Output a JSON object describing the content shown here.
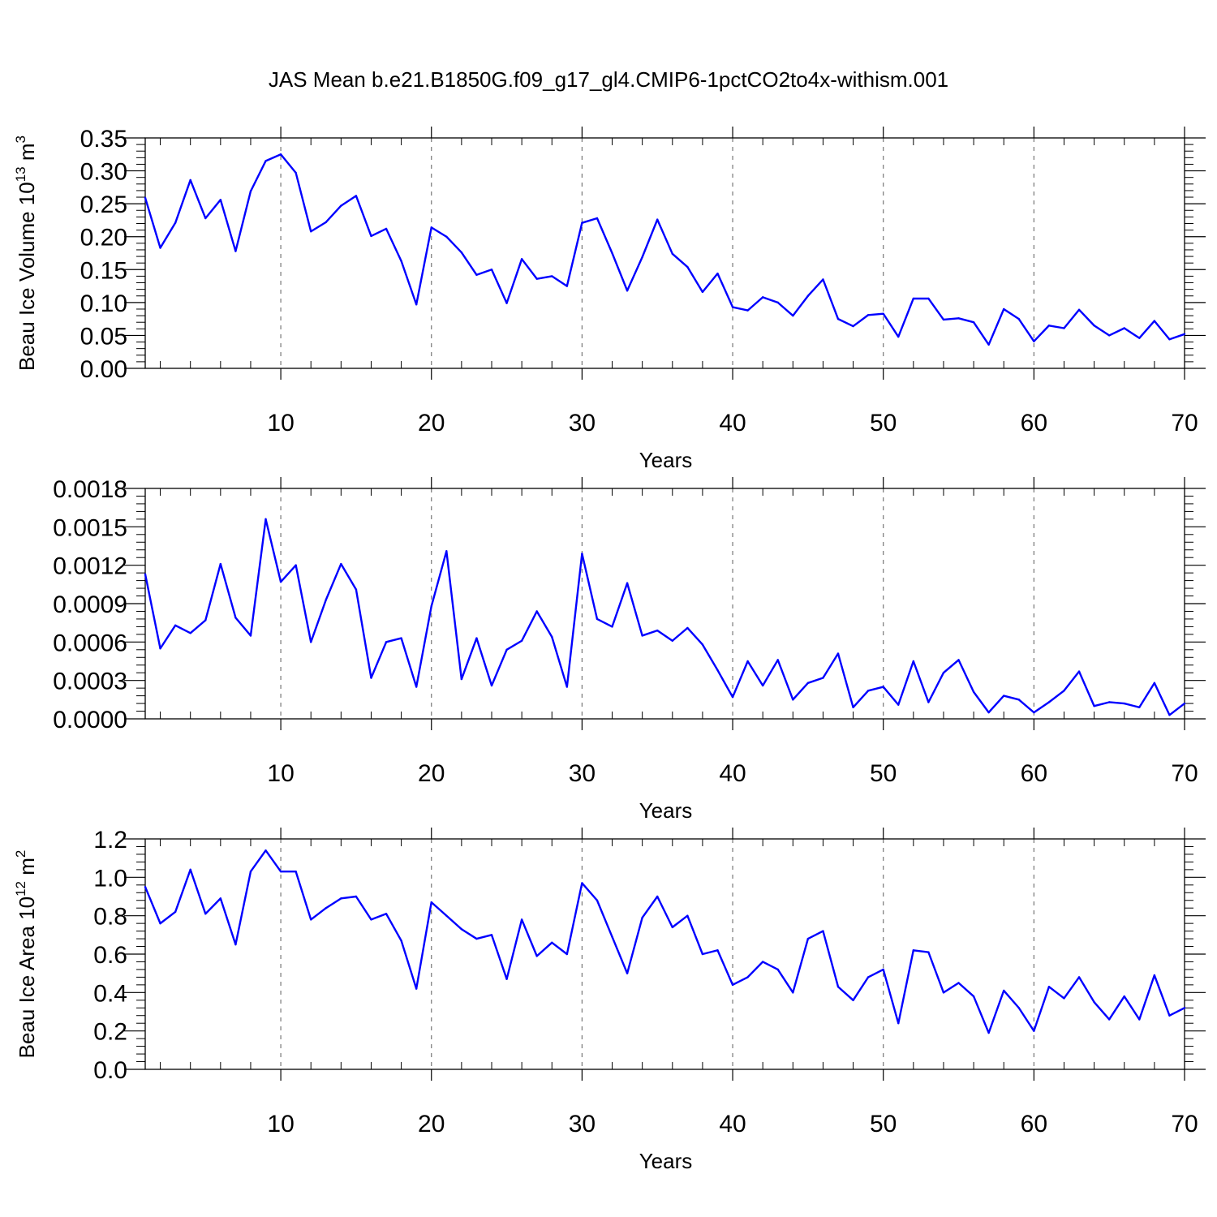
{
  "title": "JAS Mean b.e21.B1850G.f09_g17_gl4.CMIP6-1pctCO2to4x-withism.001",
  "colors": {
    "line": "#0000ff",
    "grid": "#777777",
    "axis": "#000000"
  },
  "chart_data": [
    {
      "type": "line",
      "xlabel": "Years",
      "ylabel_main": "Beau Ice Volume 10",
      "ylabel_sup1": "13",
      "ylabel_mid": " m",
      "ylabel_sup2": "3",
      "xlim": [
        1,
        70
      ],
      "ylim": [
        0,
        0.35
      ],
      "grid": "vertical dashed at x ticks",
      "x_ticks": [
        10,
        20,
        30,
        40,
        50,
        60,
        70
      ],
      "y_ticks": [
        "0.00",
        "0.05",
        "0.10",
        "0.15",
        "0.20",
        "0.25",
        "0.30",
        "0.35"
      ],
      "y_tick_values": [
        0,
        0.05,
        0.1,
        0.15,
        0.2,
        0.25,
        0.3,
        0.35
      ],
      "series": [
        {
          "values": [
            0.259,
            0.183,
            0.221,
            0.286,
            0.228,
            0.256,
            0.178,
            0.269,
            0.315,
            0.325,
            0.297,
            0.208,
            0.222,
            0.247,
            0.262,
            0.201,
            0.212,
            0.163,
            0.097,
            0.214,
            0.2,
            0.176,
            0.142,
            0.15,
            0.099,
            0.166,
            0.136,
            0.14,
            0.125,
            0.221,
            0.228,
            0.175,
            0.118,
            0.169,
            0.226,
            0.174,
            0.154,
            0.116,
            0.144,
            0.093,
            0.088,
            0.108,
            0.1,
            0.08,
            0.11,
            0.135,
            0.075,
            0.064,
            0.081,
            0.083,
            0.048,
            0.106,
            0.106,
            0.074,
            0.076,
            0.07,
            0.036,
            0.09,
            0.075,
            0.041,
            0.065,
            0.061,
            0.089,
            0.065,
            0.05,
            0.061,
            0.046,
            0.072,
            0.044,
            0.052
          ]
        }
      ]
    },
    {
      "type": "line",
      "xlabel": "Years",
      "ylabel_main": "",
      "ylabel_sup1": "",
      "ylabel_mid": "",
      "ylabel_sup2": "",
      "xlim": [
        1,
        70
      ],
      "ylim": [
        0,
        0.0018
      ],
      "grid": "vertical dashed at x ticks",
      "x_ticks": [
        10,
        20,
        30,
        40,
        50,
        60,
        70
      ],
      "y_ticks": [
        "0.0000",
        "0.0003",
        "0.0006",
        "0.0009",
        "0.0012",
        "0.0015",
        "0.0018"
      ],
      "y_tick_values": [
        0,
        0.0003,
        0.0006,
        0.0009,
        0.0012,
        0.0015,
        0.0018
      ],
      "series": [
        {
          "values": [
            0.00113,
            0.00055,
            0.00073,
            0.00067,
            0.00077,
            0.00121,
            0.00079,
            0.00065,
            0.00156,
            0.00107,
            0.0012,
            0.0006,
            0.00093,
            0.00121,
            0.00101,
            0.00032,
            0.0006,
            0.00063,
            0.00025,
            0.00088,
            0.00131,
            0.00031,
            0.00063,
            0.00026,
            0.00054,
            0.00061,
            0.00084,
            0.00064,
            0.00025,
            0.00129,
            0.00078,
            0.00072,
            0.00106,
            0.00065,
            0.00069,
            0.00061,
            0.00071,
            0.00058,
            0.00038,
            0.00017,
            0.00045,
            0.00026,
            0.00046,
            0.00015,
            0.00028,
            0.00032,
            0.00051,
            9e-05,
            0.00022,
            0.00025,
            0.00011,
            0.00045,
            0.00013,
            0.00036,
            0.00046,
            0.00021,
            5e-05,
            0.00018,
            0.00015,
            5e-05,
            0.00013,
            0.00022,
            0.00037,
            0.0001,
            0.00013,
            0.00012,
            9e-05,
            0.00028,
            3e-05,
            0.00012
          ]
        }
      ]
    },
    {
      "type": "line",
      "xlabel": "Years",
      "ylabel_main": "Beau Ice Area 10",
      "ylabel_sup1": "12",
      "ylabel_mid": " m",
      "ylabel_sup2": "2",
      "xlim": [
        1,
        70
      ],
      "ylim": [
        0,
        1.2
      ],
      "grid": "vertical dashed at x ticks",
      "x_ticks": [
        10,
        20,
        30,
        40,
        50,
        60,
        70
      ],
      "y_ticks": [
        "0.0",
        "0.2",
        "0.4",
        "0.6",
        "0.8",
        "1.0",
        "1.2"
      ],
      "y_tick_values": [
        0,
        0.2,
        0.4,
        0.6,
        0.8,
        1.0,
        1.2
      ],
      "series": [
        {
          "values": [
            0.95,
            0.76,
            0.82,
            1.04,
            0.81,
            0.89,
            0.65,
            1.03,
            1.14,
            1.03,
            1.03,
            0.78,
            0.84,
            0.89,
            0.9,
            0.78,
            0.81,
            0.67,
            0.42,
            0.87,
            0.8,
            0.73,
            0.68,
            0.7,
            0.47,
            0.78,
            0.59,
            0.66,
            0.6,
            0.97,
            0.88,
            0.69,
            0.5,
            0.79,
            0.9,
            0.74,
            0.8,
            0.6,
            0.62,
            0.44,
            0.48,
            0.56,
            0.52,
            0.4,
            0.68,
            0.72,
            0.43,
            0.36,
            0.48,
            0.52,
            0.24,
            0.62,
            0.61,
            0.4,
            0.45,
            0.38,
            0.19,
            0.41,
            0.32,
            0.2,
            0.43,
            0.37,
            0.48,
            0.35,
            0.26,
            0.38,
            0.26,
            0.49,
            0.28,
            0.32
          ]
        }
      ]
    }
  ]
}
